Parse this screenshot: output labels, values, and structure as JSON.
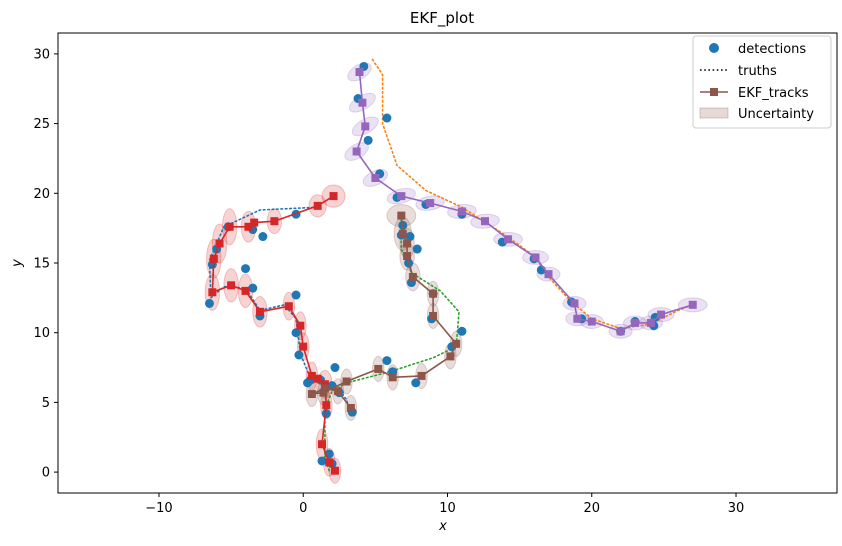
{
  "chart_data": {
    "type": "scatter",
    "title": "EKF_plot",
    "xlabel": "x",
    "ylabel": "y",
    "xlim": [
      -17,
      37
    ],
    "ylim": [
      -1.5,
      31.5
    ],
    "xticks": [
      -10,
      0,
      10,
      20,
      30
    ],
    "yticks": [
      0,
      5,
      10,
      15,
      20,
      25,
      30
    ],
    "x_tick_labels": [
      "−10",
      "0",
      "10",
      "20",
      "30"
    ],
    "y_tick_labels": [
      "0",
      "5",
      "10",
      "15",
      "20",
      "25",
      "30"
    ],
    "legend_placement": "top-right",
    "legend": [
      {
        "label": "detections",
        "kind": "marker-circle",
        "color": "#1f77b4"
      },
      {
        "label": "truths",
        "kind": "dotted-line",
        "color": "#000000"
      },
      {
        "label": "EKF_tracks",
        "kind": "line-square",
        "color": "#8c564b"
      },
      {
        "label": "Uncertainty",
        "kind": "patch",
        "color": "#8c564b"
      }
    ],
    "truths": [
      {
        "color": "#1f77b4",
        "points": [
          [
            1.0,
            19.0
          ],
          [
            -3,
            18.8
          ],
          [
            -5.5,
            17.6
          ],
          [
            -6.5,
            15.2
          ],
          [
            -6.4,
            12.5
          ],
          [
            -5.5,
            13.3
          ],
          [
            -4,
            13.2
          ],
          [
            -3.0,
            11.6
          ],
          [
            -1.3,
            12.0
          ],
          [
            -0.5,
            11.0
          ],
          [
            -0.2,
            8.5
          ],
          [
            0.5,
            6.7
          ],
          [
            1.5,
            6.4
          ],
          [
            2.5,
            5.9
          ],
          [
            3.0,
            5.2
          ],
          [
            3.2,
            4.4
          ]
        ]
      },
      {
        "color": "#2ca02c",
        "points": [
          [
            1.8,
            0.1
          ],
          [
            1.5,
            1.0
          ],
          [
            1.5,
            2.5
          ],
          [
            1.5,
            4.5
          ],
          [
            2.0,
            5.8
          ],
          [
            3.0,
            6.4
          ],
          [
            6.0,
            7.2
          ],
          [
            9.0,
            8.2
          ],
          [
            10.6,
            9.0
          ],
          [
            10.8,
            11.5
          ],
          [
            9.5,
            13.0
          ],
          [
            7.5,
            14.3
          ],
          [
            6.8,
            16.0
          ],
          [
            6.8,
            18.4
          ]
        ]
      },
      {
        "color": "#ff7f0e",
        "points": [
          [
            4.8,
            29.6
          ],
          [
            5.5,
            28.5
          ],
          [
            5.5,
            25
          ],
          [
            6.5,
            22
          ],
          [
            8.5,
            20.2
          ],
          [
            11,
            19
          ],
          [
            14,
            17
          ],
          [
            16,
            15.5
          ],
          [
            17,
            14
          ],
          [
            18.5,
            12.3
          ],
          [
            20,
            11
          ],
          [
            22,
            10.3
          ],
          [
            24,
            10.6
          ],
          [
            26,
            11.6
          ],
          [
            27,
            12.0
          ]
        ]
      }
    ],
    "tracks": [
      {
        "color": "#d62728",
        "points": [
          [
            2.2,
            0.1
          ],
          [
            1.8,
            0.7
          ],
          [
            1.3,
            2.0
          ],
          [
            1.6,
            4.8
          ],
          [
            1.5,
            6.3
          ],
          [
            1.0,
            6.7
          ],
          [
            0.6,
            6.9
          ],
          [
            0.0,
            9.0
          ],
          [
            -0.2,
            10.5
          ],
          [
            -1.0,
            11.9
          ],
          [
            -3.0,
            11.5
          ],
          [
            -4.0,
            13.0
          ],
          [
            -5.0,
            13.4
          ],
          [
            -6.3,
            12.9
          ],
          [
            -6.2,
            15.3
          ],
          [
            -5.8,
            16.4
          ],
          [
            -5.1,
            17.6
          ],
          [
            -3.8,
            17.6
          ],
          [
            -3.4,
            17.9
          ],
          [
            -2.0,
            18.0
          ],
          [
            1.0,
            19.1
          ],
          [
            2.1,
            19.8
          ]
        ]
      },
      {
        "color": "#8c564b",
        "points": [
          [
            3.3,
            4.6
          ],
          [
            2.4,
            5.8
          ],
          [
            1.5,
            6.0
          ],
          [
            0.6,
            5.6
          ],
          [
            1.4,
            5.7
          ],
          [
            3.0,
            6.5
          ],
          [
            5.2,
            7.4
          ],
          [
            6.2,
            6.8
          ],
          [
            8.2,
            6.9
          ],
          [
            10.2,
            8.3
          ],
          [
            10.6,
            9.2
          ],
          [
            9.0,
            11.2
          ],
          [
            9.0,
            12.8
          ],
          [
            7.6,
            14.0
          ],
          [
            7.2,
            15.5
          ],
          [
            7.2,
            16.4
          ],
          [
            6.9,
            17.1
          ],
          [
            6.8,
            18.4
          ]
        ]
      },
      {
        "color": "#9467bd",
        "points": [
          [
            3.9,
            28.7
          ],
          [
            4.1,
            26.5
          ],
          [
            4.3,
            24.8
          ],
          [
            3.7,
            23.0
          ],
          [
            5.0,
            21.1
          ],
          [
            6.8,
            19.8
          ],
          [
            8.8,
            19.3
          ],
          [
            11.0,
            18.7
          ],
          [
            12.6,
            18.0
          ],
          [
            14.2,
            16.7
          ],
          [
            16.1,
            15.4
          ],
          [
            17.0,
            14.2
          ],
          [
            18.8,
            12.1
          ],
          [
            19.0,
            11.0
          ],
          [
            20.0,
            10.8
          ],
          [
            22.0,
            10.1
          ],
          [
            23.0,
            10.7
          ],
          [
            24.1,
            10.7
          ],
          [
            24.8,
            11.3
          ],
          [
            27.0,
            12.0
          ]
        ]
      }
    ],
    "detections": [
      [
        4.2,
        29.1
      ],
      [
        3.8,
        26.8
      ],
      [
        5.8,
        25.4
      ],
      [
        4.5,
        23.8
      ],
      [
        5.3,
        21.4
      ],
      [
        6.5,
        19.7
      ],
      [
        8.5,
        19.2
      ],
      [
        11.0,
        18.5
      ],
      [
        13.8,
        16.5
      ],
      [
        16.0,
        15.3
      ],
      [
        16.5,
        14.5
      ],
      [
        18.6,
        12.2
      ],
      [
        19.3,
        11.0
      ],
      [
        22.0,
        10.1
      ],
      [
        23.0,
        10.8
      ],
      [
        24.3,
        10.5
      ],
      [
        24.4,
        11.1
      ],
      [
        -0.5,
        18.5
      ],
      [
        -5.2,
        17.6
      ],
      [
        -3.5,
        17.4
      ],
      [
        -2.8,
        16.9
      ],
      [
        -4.0,
        14.6
      ],
      [
        -6.3,
        14.9
      ],
      [
        -6.0,
        16.0
      ],
      [
        -6.5,
        12.1
      ],
      [
        -3.5,
        13.2
      ],
      [
        -3.0,
        11.2
      ],
      [
        -0.5,
        12.7
      ],
      [
        -0.5,
        10.0
      ],
      [
        -0.3,
        8.4
      ],
      [
        0.5,
        6.6
      ],
      [
        1.2,
        6.6
      ],
      [
        0.3,
        6.4
      ],
      [
        2.2,
        7.5
      ],
      [
        2.0,
        6.2
      ],
      [
        2.5,
        5.7
      ],
      [
        3.4,
        4.3
      ],
      [
        1.6,
        4.2
      ],
      [
        1.8,
        1.3
      ],
      [
        1.3,
        0.8
      ],
      [
        2.0,
        0.6
      ],
      [
        5.8,
        8.0
      ],
      [
        6.2,
        7.2
      ],
      [
        7.8,
        6.4
      ],
      [
        10.3,
        9.0
      ],
      [
        11.0,
        10.1
      ],
      [
        9.0,
        12.8
      ],
      [
        8.9,
        11.0
      ],
      [
        7.5,
        13.6
      ],
      [
        7.3,
        15.0
      ],
      [
        7.9,
        16.0
      ],
      [
        7.4,
        16.9
      ],
      [
        6.8,
        17.0
      ],
      [
        6.9,
        17.7
      ]
    ],
    "uncertainty": [
      {
        "color": "#9467bd",
        "cx": 3.9,
        "cy": 28.7,
        "rx": 0.9,
        "ry": 0.5,
        "rot": 30
      },
      {
        "color": "#9467bd",
        "cx": 4.1,
        "cy": 26.5,
        "rx": 1.0,
        "ry": 0.5,
        "rot": 30
      },
      {
        "color": "#9467bd",
        "cx": 4.3,
        "cy": 24.8,
        "rx": 1.0,
        "ry": 0.5,
        "rot": 30
      },
      {
        "color": "#9467bd",
        "cx": 3.7,
        "cy": 23.0,
        "rx": 0.9,
        "ry": 0.5,
        "rot": 30
      },
      {
        "color": "#9467bd",
        "cx": 5.0,
        "cy": 21.1,
        "rx": 0.9,
        "ry": 0.5,
        "rot": 25
      },
      {
        "color": "#9467bd",
        "cx": 6.8,
        "cy": 19.8,
        "rx": 1.0,
        "ry": 0.5,
        "rot": 15
      },
      {
        "color": "#9467bd",
        "cx": 8.8,
        "cy": 19.3,
        "rx": 1.0,
        "ry": 0.5,
        "rot": 10
      },
      {
        "color": "#9467bd",
        "cx": 11.0,
        "cy": 18.7,
        "rx": 1.0,
        "ry": 0.5,
        "rot": 5
      },
      {
        "color": "#9467bd",
        "cx": 12.6,
        "cy": 18.0,
        "rx": 1.0,
        "ry": 0.5,
        "rot": 5
      },
      {
        "color": "#9467bd",
        "cx": 14.2,
        "cy": 16.7,
        "rx": 1.0,
        "ry": 0.5,
        "rot": 0
      },
      {
        "color": "#9467bd",
        "cx": 16.1,
        "cy": 15.4,
        "rx": 0.9,
        "ry": 0.5,
        "rot": 0
      },
      {
        "color": "#9467bd",
        "cx": 17.0,
        "cy": 14.2,
        "rx": 0.8,
        "ry": 0.5,
        "rot": 0
      },
      {
        "color": "#9467bd",
        "cx": 18.8,
        "cy": 12.1,
        "rx": 0.8,
        "ry": 0.5,
        "rot": 0
      },
      {
        "color": "#9467bd",
        "cx": 19.0,
        "cy": 11.0,
        "rx": 0.8,
        "ry": 0.5,
        "rot": 0
      },
      {
        "color": "#9467bd",
        "cx": 20.0,
        "cy": 10.8,
        "rx": 0.8,
        "ry": 0.5,
        "rot": 0
      },
      {
        "color": "#9467bd",
        "cx": 22.0,
        "cy": 10.1,
        "rx": 0.8,
        "ry": 0.5,
        "rot": 0
      },
      {
        "color": "#9467bd",
        "cx": 23.0,
        "cy": 10.7,
        "rx": 0.8,
        "ry": 0.5,
        "rot": 0
      },
      {
        "color": "#9467bd",
        "cx": 24.1,
        "cy": 10.7,
        "rx": 0.8,
        "ry": 0.5,
        "rot": 0
      },
      {
        "color": "#9467bd",
        "cx": 24.8,
        "cy": 11.3,
        "rx": 0.9,
        "ry": 0.5,
        "rot": 0
      },
      {
        "color": "#9467bd",
        "cx": 27.0,
        "cy": 12.0,
        "rx": 1.0,
        "ry": 0.5,
        "rot": 0
      },
      {
        "color": "#d62728",
        "cx": 2.2,
        "cy": 0.1,
        "rx": 0.4,
        "ry": 0.9,
        "rot": 0
      },
      {
        "color": "#d62728",
        "cx": 1.8,
        "cy": 0.7,
        "rx": 0.4,
        "ry": 1.0,
        "rot": 0
      },
      {
        "color": "#d62728",
        "cx": 1.3,
        "cy": 2.0,
        "rx": 0.4,
        "ry": 1.1,
        "rot": 0
      },
      {
        "color": "#d62728",
        "cx": 1.6,
        "cy": 4.8,
        "rx": 0.4,
        "ry": 1.0,
        "rot": 0
      },
      {
        "color": "#d62728",
        "cx": 1.5,
        "cy": 6.3,
        "rx": 0.5,
        "ry": 1.0,
        "rot": 0
      },
      {
        "color": "#d62728",
        "cx": 0.6,
        "cy": 6.9,
        "rx": 0.4,
        "ry": 1.0,
        "rot": 0
      },
      {
        "color": "#d62728",
        "cx": 0.0,
        "cy": 9.0,
        "rx": 0.4,
        "ry": 1.0,
        "rot": 0
      },
      {
        "color": "#d62728",
        "cx": -0.2,
        "cy": 10.5,
        "rx": 0.4,
        "ry": 1.0,
        "rot": 0
      },
      {
        "color": "#d62728",
        "cx": -1.0,
        "cy": 11.9,
        "rx": 0.4,
        "ry": 1.0,
        "rot": 0
      },
      {
        "color": "#d62728",
        "cx": -3.0,
        "cy": 11.5,
        "rx": 0.5,
        "ry": 1.1,
        "rot": 0
      },
      {
        "color": "#d62728",
        "cx": -4.0,
        "cy": 13.0,
        "rx": 0.5,
        "ry": 1.2,
        "rot": 0
      },
      {
        "color": "#d62728",
        "cx": -5.0,
        "cy": 13.4,
        "rx": 0.5,
        "ry": 1.2,
        "rot": 0
      },
      {
        "color": "#d62728",
        "cx": -6.3,
        "cy": 12.9,
        "rx": 0.5,
        "ry": 1.3,
        "rot": 0
      },
      {
        "color": "#d62728",
        "cx": -6.2,
        "cy": 15.3,
        "rx": 0.5,
        "ry": 1.4,
        "rot": 0
      },
      {
        "color": "#d62728",
        "cx": -5.8,
        "cy": 16.4,
        "rx": 0.5,
        "ry": 1.4,
        "rot": 0
      },
      {
        "color": "#d62728",
        "cx": -5.1,
        "cy": 17.6,
        "rx": 0.5,
        "ry": 1.3,
        "rot": 0
      },
      {
        "color": "#d62728",
        "cx": -3.8,
        "cy": 17.6,
        "rx": 0.5,
        "ry": 1.1,
        "rot": 0
      },
      {
        "color": "#d62728",
        "cx": -2.0,
        "cy": 18.0,
        "rx": 0.5,
        "ry": 0.9,
        "rot": 0
      },
      {
        "color": "#d62728",
        "cx": 1.0,
        "cy": 19.1,
        "rx": 0.6,
        "ry": 0.8,
        "rot": 0
      },
      {
        "color": "#d62728",
        "cx": 2.1,
        "cy": 19.8,
        "rx": 0.8,
        "ry": 0.8,
        "rot": 0
      },
      {
        "color": "#8c564b",
        "cx": 3.3,
        "cy": 4.6,
        "rx": 0.4,
        "ry": 0.9,
        "rot": 0
      },
      {
        "color": "#8c564b",
        "cx": 2.4,
        "cy": 5.8,
        "rx": 0.4,
        "ry": 0.9,
        "rot": 0
      },
      {
        "color": "#8c564b",
        "cx": 0.6,
        "cy": 5.6,
        "rx": 0.4,
        "ry": 0.9,
        "rot": 0
      },
      {
        "color": "#8c564b",
        "cx": 1.4,
        "cy": 5.7,
        "rx": 0.4,
        "ry": 0.9,
        "rot": 0
      },
      {
        "color": "#8c564b",
        "cx": 3.0,
        "cy": 6.5,
        "rx": 0.4,
        "ry": 0.9,
        "rot": 0
      },
      {
        "color": "#8c564b",
        "cx": 5.2,
        "cy": 7.4,
        "rx": 0.4,
        "ry": 0.9,
        "rot": 0
      },
      {
        "color": "#8c564b",
        "cx": 6.2,
        "cy": 6.8,
        "rx": 0.4,
        "ry": 0.9,
        "rot": 0
      },
      {
        "color": "#8c564b",
        "cx": 8.2,
        "cy": 6.9,
        "rx": 0.4,
        "ry": 0.9,
        "rot": 0
      },
      {
        "color": "#8c564b",
        "cx": 10.2,
        "cy": 8.3,
        "rx": 0.4,
        "ry": 0.9,
        "rot": 0
      },
      {
        "color": "#8c564b",
        "cx": 10.6,
        "cy": 9.2,
        "rx": 0.4,
        "ry": 0.9,
        "rot": 0
      },
      {
        "color": "#8c564b",
        "cx": 9.0,
        "cy": 11.2,
        "rx": 0.4,
        "ry": 0.9,
        "rot": 0
      },
      {
        "color": "#8c564b",
        "cx": 9.0,
        "cy": 12.8,
        "rx": 0.4,
        "ry": 0.9,
        "rot": 0
      },
      {
        "color": "#8c564b",
        "cx": 7.6,
        "cy": 14.0,
        "rx": 0.5,
        "ry": 1.0,
        "rot": 0
      },
      {
        "color": "#8c564b",
        "cx": 7.2,
        "cy": 15.5,
        "rx": 0.5,
        "ry": 1.0,
        "rot": 0
      },
      {
        "color": "#8c564b",
        "cx": 7.2,
        "cy": 16.4,
        "rx": 0.5,
        "ry": 1.1,
        "rot": 0
      },
      {
        "color": "#8c564b",
        "cx": 6.9,
        "cy": 17.1,
        "rx": 0.6,
        "ry": 1.2,
        "rot": 0
      },
      {
        "color": "#8c564b",
        "cx": 6.8,
        "cy": 18.4,
        "rx": 1.0,
        "ry": 0.8,
        "rot": 0
      }
    ]
  }
}
